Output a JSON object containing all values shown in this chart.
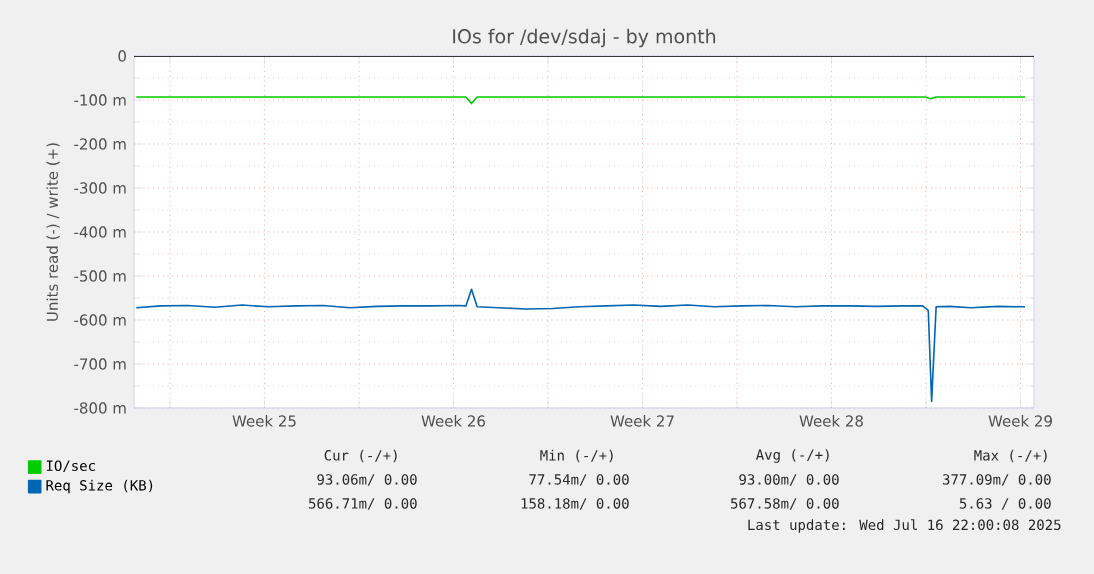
{
  "chart_data": {
    "type": "line",
    "title": "IOs for /dev/sdaj - by month",
    "ylabel": "Units read (-) / write (+)",
    "xlim": [
      "2025-06-13T14:00",
      "2025-07-16T22:00"
    ],
    "ylim": [
      -800,
      0
    ],
    "xticks": [
      {
        "value": "2025-06-14T22:00",
        "label": null
      },
      {
        "value": "2025-06-18T10:00",
        "label": "Week 25"
      },
      {
        "value": "2025-06-21T22:00",
        "label": null
      },
      {
        "value": "2025-06-25T10:00",
        "label": "Week 26"
      },
      {
        "value": "2025-06-28T22:00",
        "label": null
      },
      {
        "value": "2025-07-02T10:00",
        "label": "Week 27"
      },
      {
        "value": "2025-07-05T22:00",
        "label": null
      },
      {
        "value": "2025-07-09T10:00",
        "label": "Week 28"
      },
      {
        "value": "2025-07-12T22:00",
        "label": null
      },
      {
        "value": "2025-07-16T10:00",
        "label": "Week 29"
      }
    ],
    "yticks": [
      {
        "value": -800,
        "label": "-800 m"
      },
      {
        "value": -700,
        "label": "-700 m"
      },
      {
        "value": -600,
        "label": "-600 m"
      },
      {
        "value": -500,
        "label": "-500 m"
      },
      {
        "value": -400,
        "label": "-400 m"
      },
      {
        "value": -300,
        "label": "-300 m"
      },
      {
        "value": -200,
        "label": "-200 m"
      },
      {
        "value": -100,
        "label": "-100 m"
      },
      {
        "value": 0,
        "label": "0"
      }
    ],
    "grid": true,
    "legend": "bottom left",
    "ref_lines": [
      {
        "axis": "y",
        "value": 0,
        "color": "#000000"
      }
    ],
    "series": [
      {
        "name": "IO/sec",
        "color": "#00cc00",
        "x": [
          "2025-06-13T16:00",
          "2025-06-25T21:00",
          "2025-06-26T02:00",
          "2025-06-26T07:00",
          "2025-07-12T21:00",
          "2025-07-13T02:00",
          "2025-07-13T07:00",
          "2025-07-16T14:00"
        ],
        "values": [
          -93,
          -93,
          -108,
          -93,
          -93,
          -97,
          -93,
          -93
        ]
      },
      {
        "name": "Req Size (KB)",
        "color": "#0066b3",
        "x": [
          "2025-06-13T16:00",
          "2025-06-14T14:00",
          "2025-06-15T14:00",
          "2025-06-16T14:00",
          "2025-06-17T14:00",
          "2025-06-18T14:00",
          "2025-06-19T14:00",
          "2025-06-20T14:00",
          "2025-06-21T14:00",
          "2025-06-22T14:00",
          "2025-06-23T14:00",
          "2025-06-24T14:00",
          "2025-06-25T14:00",
          "2025-06-25T21:00",
          "2025-06-26T02:00",
          "2025-06-26T07:00",
          "2025-06-27T02:00",
          "2025-06-28T02:00",
          "2025-06-29T02:00",
          "2025-06-30T02:00",
          "2025-07-01T02:00",
          "2025-07-02T02:00",
          "2025-07-03T02:00",
          "2025-07-04T02:00",
          "2025-07-05T02:00",
          "2025-07-06T02:00",
          "2025-07-07T02:00",
          "2025-07-08T02:00",
          "2025-07-09T02:00",
          "2025-07-10T02:00",
          "2025-07-11T02:00",
          "2025-07-12T02:00",
          "2025-07-12T19:00",
          "2025-07-13T00:00",
          "2025-07-13T03:00",
          "2025-07-13T07:00",
          "2025-07-13T19:00",
          "2025-07-14T14:00",
          "2025-07-15T14:00",
          "2025-07-16T14:00"
        ],
        "values": [
          -572,
          -568,
          -567,
          -571,
          -566,
          -570,
          -568,
          -567,
          -572,
          -569,
          -568,
          -568,
          -567,
          -568,
          -530,
          -570,
          -572,
          -575,
          -574,
          -570,
          -568,
          -566,
          -569,
          -566,
          -570,
          -568,
          -567,
          -570,
          -568,
          -568,
          -569,
          -568,
          -568,
          -578,
          -785,
          -570,
          -569,
          -572,
          -569,
          -570
        ]
      }
    ],
    "annotations": [
      "Cur (-/+)",
      "Min (-/+)",
      "Avg (-/+)",
      "Max (-/+)",
      "93.06m/  0.00",
      "77.54m/  0.00",
      "93.00m/  0.00",
      "377.09m/  0.00",
      "566.71m/  0.00",
      "158.18m/  0.00",
      "567.58m/  0.00",
      "5.63 /  0.00",
      "Last update: Wed Jul 16 22:00:08 2025"
    ]
  }
}
